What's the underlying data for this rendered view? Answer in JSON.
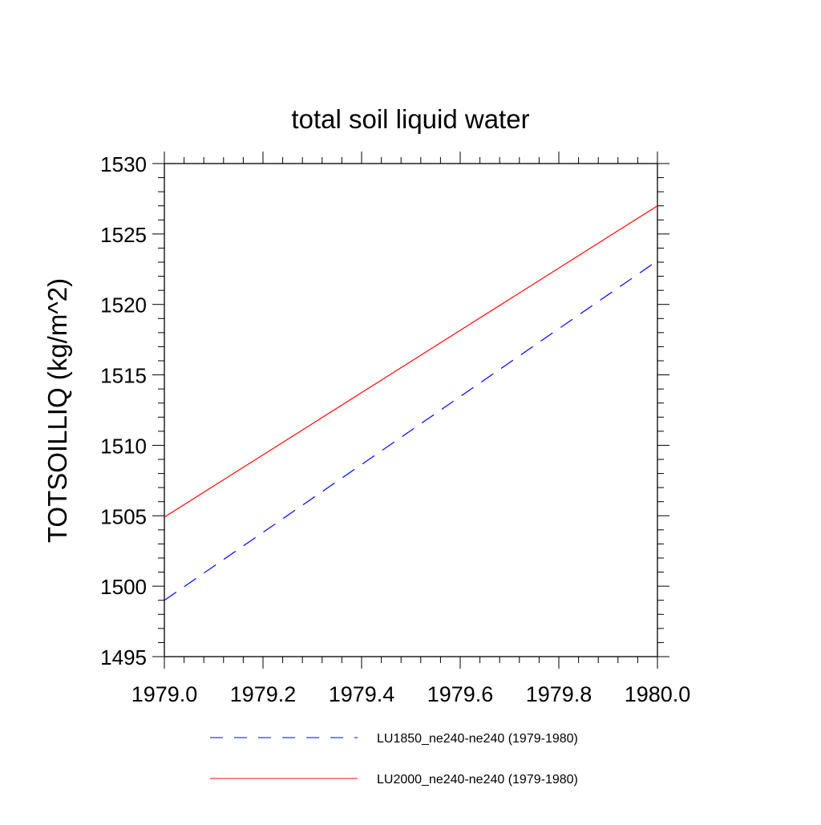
{
  "chart_data": {
    "type": "line",
    "title": "total soil liquid water",
    "xlabel": "",
    "ylabel": "TOTSOILLIQ  (kg/m^2)",
    "xlim": [
      1979.0,
      1980.0
    ],
    "ylim": [
      1495,
      1530
    ],
    "x_ticks": [
      1979.0,
      1979.2,
      1979.4,
      1979.6,
      1979.8,
      1980.0
    ],
    "x_tick_labels": [
      "1979.0",
      "1979.2",
      "1979.4",
      "1979.6",
      "1979.8",
      "1980.0"
    ],
    "y_ticks": [
      1495,
      1500,
      1505,
      1510,
      1515,
      1520,
      1525,
      1530
    ],
    "y_tick_labels": [
      "1495",
      "1500",
      "1505",
      "1510",
      "1515",
      "1520",
      "1525",
      "1530"
    ],
    "grid": false,
    "legend_position": "bottom",
    "series": [
      {
        "name": "LU1850_ne240-ne240 (1979-1980)",
        "x": [
          1979.0,
          1980.0
        ],
        "y": [
          1499.0,
          1523.1
        ],
        "color": "#0000ff",
        "dash": "dashed"
      },
      {
        "name": "LU2000_ne240-ne240 (1979-1980)",
        "x": [
          1979.0,
          1980.0
        ],
        "y": [
          1504.9,
          1527.0
        ],
        "color": "#ff0000",
        "dash": "solid"
      }
    ]
  }
}
